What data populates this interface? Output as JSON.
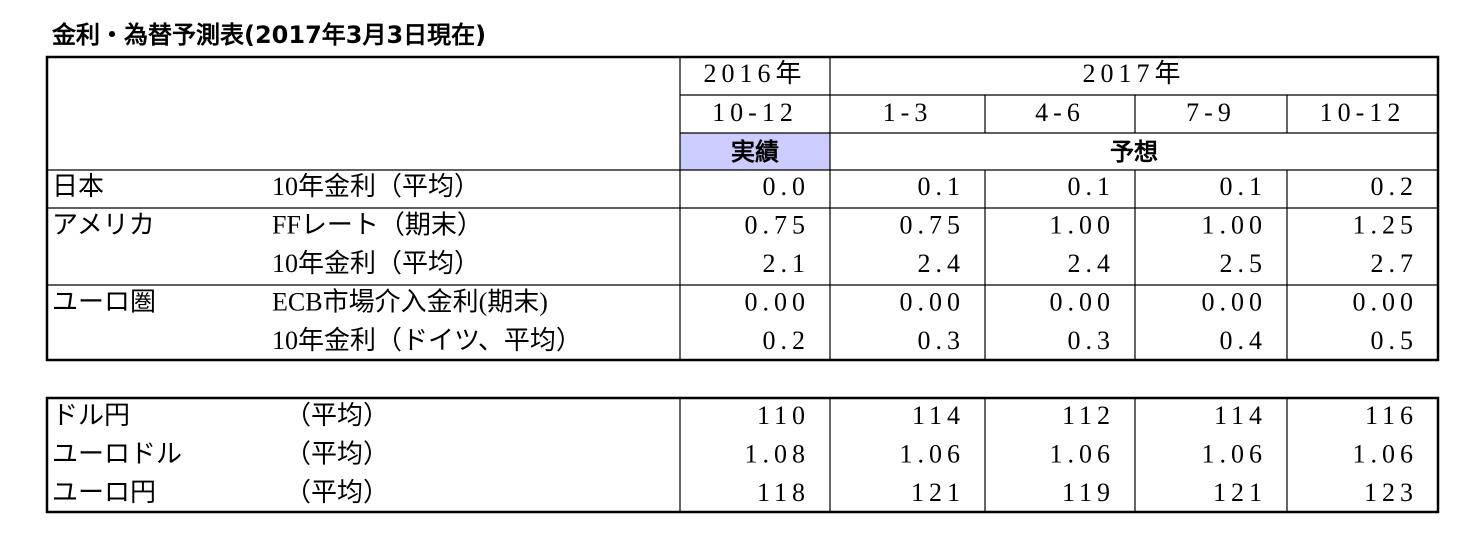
{
  "title": "金利・為替予測表(2017年3月3日現在)",
  "table": {
    "header": {
      "year_2016": "2016年",
      "year_2017": "2017年",
      "quarters": [
        "10-12",
        "1-3",
        "4-6",
        "7-9",
        "10-12"
      ],
      "actual": "実績",
      "forecast": "予想"
    },
    "groups": [
      {
        "region": "日本",
        "items": [
          {
            "label": "10年金利（平均）",
            "values": [
              "0.0",
              "0.1",
              "0.1",
              "0.1",
              "0.2"
            ]
          }
        ]
      },
      {
        "region": "アメリカ",
        "items": [
          {
            "label": "FFレート（期末）",
            "values": [
              "0.75",
              "0.75",
              "1.00",
              "1.00",
              "1.25"
            ]
          },
          {
            "label": "10年金利（平均）",
            "values": [
              "2.1",
              "2.4",
              "2.4",
              "2.5",
              "2.7"
            ]
          }
        ]
      },
      {
        "region": "ユーロ圏",
        "items": [
          {
            "label": "ECB市場介入金利(期末)",
            "values": [
              "0.00",
              "0.00",
              "0.00",
              "0.00",
              "0.00"
            ]
          },
          {
            "label": "10年金利（ドイツ、平均）",
            "values": [
              "0.2",
              "0.3",
              "0.3",
              "0.4",
              "0.5"
            ]
          }
        ]
      }
    ]
  },
  "fx_table": {
    "rows": [
      {
        "label": "ドル円",
        "note": "（平均）",
        "values": [
          "110",
          "114",
          "112",
          "114",
          "116"
        ]
      },
      {
        "label": "ユーロドル",
        "note": "（平均）",
        "values": [
          "1.08",
          "1.06",
          "1.06",
          "1.06",
          "1.06"
        ]
      },
      {
        "label": "ユーロ円",
        "note": "（平均）",
        "values": [
          "118",
          "121",
          "119",
          "121",
          "123"
        ]
      }
    ]
  }
}
